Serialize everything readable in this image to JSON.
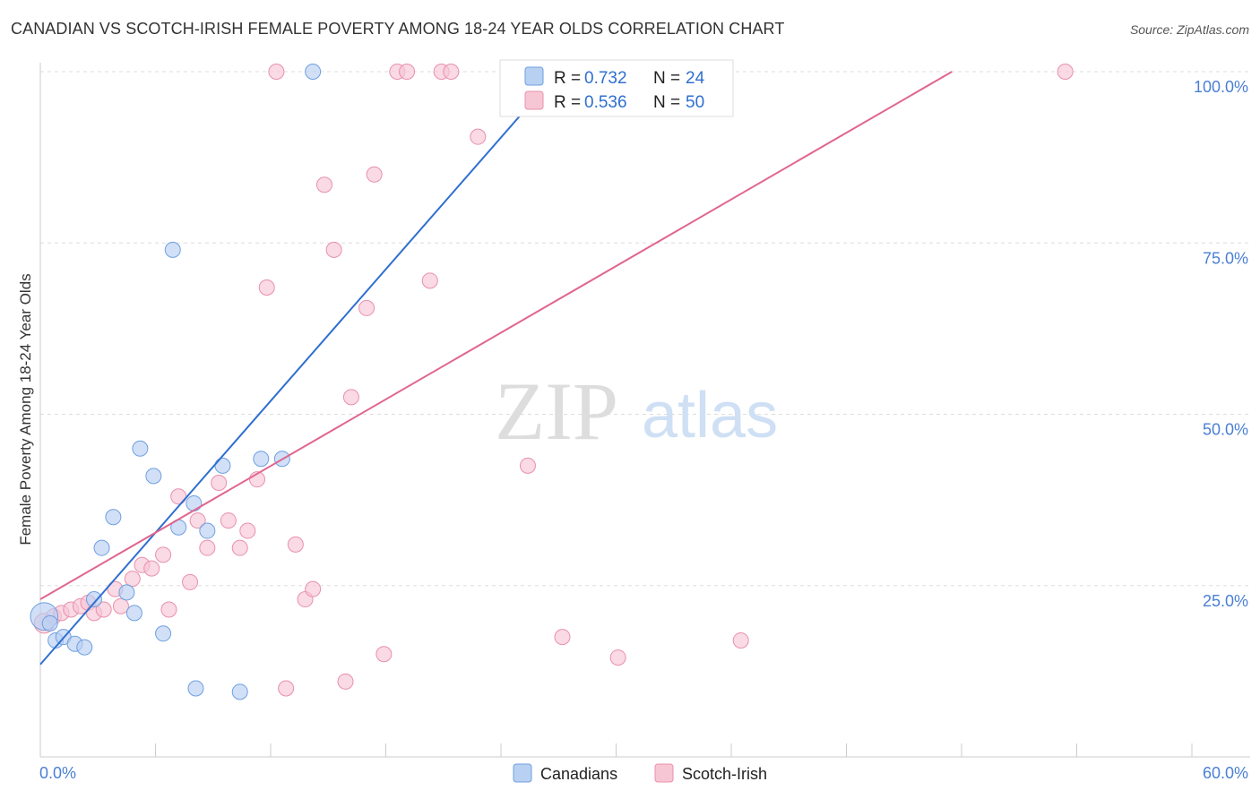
{
  "title": "CANADIAN VS SCOTCH-IRISH FEMALE POVERTY AMONG 18-24 YEAR OLDS CORRELATION CHART",
  "source": "Source: ZipAtlas.com",
  "watermark": {
    "zip": "ZIP",
    "atlas": "atlas"
  },
  "colors": {
    "canadians_fill": "#b8d0f2",
    "canadians_stroke": "#6f9fe0",
    "canadians_line": "#2f6fd0",
    "scotch_fill": "#f7c6d5",
    "scotch_stroke": "#e890ad",
    "scotch_line": "#e0668f",
    "grid": "#dddddd",
    "tick_text": "#4a7fd4"
  },
  "legend": {
    "rows": [
      {
        "r_label": "R =",
        "r_value": "0.732",
        "n_label": "N =",
        "n_value": "24"
      },
      {
        "r_label": "R =",
        "r_value": "0.536",
        "n_label": "N =",
        "n_value": "50"
      }
    ]
  },
  "bottom_legend": [
    "Canadians",
    "Scotch-Irish"
  ],
  "chart_data": {
    "type": "scatter",
    "title": "CANADIAN VS SCOTCH-IRISH FEMALE POVERTY AMONG 18-24 YEAR OLDS CORRELATION CHART",
    "xlabel": "",
    "ylabel": "Female Poverty Among 18-24 Year Olds",
    "xlim": [
      0,
      60
    ],
    "ylim": [
      0,
      100
    ],
    "x_tick_labels": [
      "0.0%",
      "60.0%"
    ],
    "y_ticks": [
      25,
      50,
      75,
      100
    ],
    "y_tick_labels": [
      "25.0%",
      "50.0%",
      "75.0%",
      "100.0%"
    ],
    "grid": true,
    "legend_position": "top-center",
    "series": [
      {
        "name": "Canadians",
        "r": 0.732,
        "n": 24,
        "trend": {
          "x1": 0,
          "y1": 13.5,
          "x2": 27,
          "y2": 100
        },
        "points": [
          [
            0.2,
            20.5,
            1.8
          ],
          [
            0.5,
            19.5,
            1
          ],
          [
            0.8,
            17,
            1
          ],
          [
            1.2,
            17.5,
            1
          ],
          [
            1.8,
            16.5,
            1
          ],
          [
            2.3,
            16,
            1
          ],
          [
            2.8,
            23,
            1
          ],
          [
            3.2,
            30.5,
            1
          ],
          [
            3.8,
            35,
            1
          ],
          [
            4.5,
            24,
            1
          ],
          [
            4.9,
            21,
            1
          ],
          [
            5.2,
            45,
            1
          ],
          [
            5.9,
            41,
            1
          ],
          [
            6.4,
            18,
            1
          ],
          [
            6.9,
            74,
            1
          ],
          [
            7.2,
            33.5,
            1
          ],
          [
            8.0,
            37,
            1
          ],
          [
            8.1,
            10,
            1
          ],
          [
            8.7,
            33,
            1
          ],
          [
            9.5,
            42.5,
            1
          ],
          [
            10.4,
            9.5,
            1
          ],
          [
            11.5,
            43.5,
            1
          ],
          [
            12.6,
            43.5,
            1
          ],
          [
            14.2,
            100,
            1
          ]
        ]
      },
      {
        "name": "Scotch-Irish",
        "r": 0.536,
        "n": 50,
        "trend": {
          "x1": 0,
          "y1": 23,
          "x2": 47.5,
          "y2": 100
        },
        "points": [
          [
            0.2,
            19.5,
            1.3
          ],
          [
            0.7,
            20.5,
            1
          ],
          [
            1.1,
            21,
            1
          ],
          [
            1.6,
            21.5,
            1
          ],
          [
            2.1,
            22,
            1
          ],
          [
            2.5,
            22.5,
            1
          ],
          [
            2.8,
            21,
            1
          ],
          [
            3.3,
            21.5,
            1
          ],
          [
            3.9,
            24.5,
            1
          ],
          [
            4.2,
            22,
            1
          ],
          [
            4.8,
            26,
            1
          ],
          [
            5.3,
            28,
            1
          ],
          [
            5.8,
            27.5,
            1
          ],
          [
            6.4,
            29.5,
            1
          ],
          [
            6.7,
            21.5,
            1
          ],
          [
            7.2,
            38,
            1
          ],
          [
            7.8,
            25.5,
            1
          ],
          [
            8.2,
            34.5,
            1
          ],
          [
            8.7,
            30.5,
            1
          ],
          [
            9.3,
            40,
            1
          ],
          [
            9.8,
            34.5,
            1
          ],
          [
            10.4,
            30.5,
            1
          ],
          [
            10.8,
            33,
            1
          ],
          [
            11.3,
            40.5,
            1
          ],
          [
            11.8,
            68.5,
            1
          ],
          [
            12.3,
            100,
            1
          ],
          [
            12.8,
            10,
            1
          ],
          [
            13.3,
            31,
            1
          ],
          [
            13.8,
            23,
            1
          ],
          [
            14.2,
            24.5,
            1
          ],
          [
            14.8,
            83.5,
            1
          ],
          [
            15.3,
            74,
            1
          ],
          [
            15.9,
            11,
            1
          ],
          [
            16.2,
            52.5,
            1
          ],
          [
            17.0,
            65.5,
            1
          ],
          [
            17.4,
            85,
            1
          ],
          [
            17.9,
            15,
            1
          ],
          [
            18.6,
            100,
            1
          ],
          [
            19.1,
            100,
            1
          ],
          [
            20.3,
            69.5,
            1
          ],
          [
            20.9,
            100,
            1
          ],
          [
            21.4,
            100,
            1
          ],
          [
            22.8,
            90.5,
            1
          ],
          [
            25.4,
            42.5,
            1
          ],
          [
            26.1,
            100,
            1
          ],
          [
            27.2,
            17.5,
            1
          ],
          [
            28.2,
            100,
            1
          ],
          [
            30.1,
            14.5,
            1
          ],
          [
            36.5,
            17,
            1
          ],
          [
            53.4,
            100,
            1
          ]
        ]
      }
    ]
  }
}
